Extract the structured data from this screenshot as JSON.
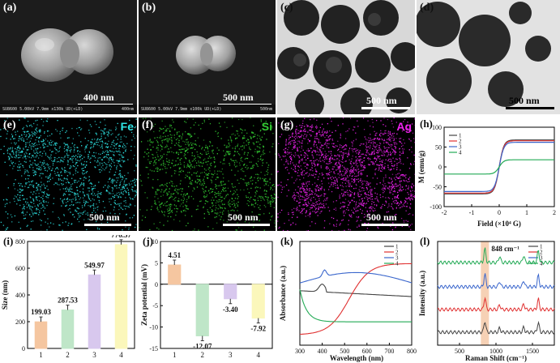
{
  "panels": {
    "a": {
      "label": "(a)",
      "scale": "400 nm",
      "info_left": "SU8600 5.00kV 7.9mm x130k UD(+LD)",
      "info_right": "400nm"
    },
    "b": {
      "label": "(b)",
      "scale": "500 nm",
      "info_left": "SU8600 5.00kV 7.9mm x100k UD(+LD)",
      "info_right": "500nm"
    },
    "c": {
      "label": "(c)",
      "scale": "500 nm"
    },
    "d": {
      "label": "(d)",
      "scale": "500 nm"
    },
    "e": {
      "label": "(e)",
      "element": "Fe",
      "scale": "500 nm"
    },
    "f": {
      "label": "(f)",
      "element": "Si",
      "scale": "500 nm"
    },
    "g": {
      "label": "(g)",
      "element": "Ag",
      "scale": "500 nm"
    }
  },
  "colors": {
    "fe": "#2ee6e6",
    "si": "#33cc33",
    "ag": "#ee22ee"
  },
  "chart_data": [
    {
      "id": "h",
      "label": "(h)",
      "type": "line",
      "xlabel": "Field (×10⁴ G)",
      "ylabel": "M (emu/g)",
      "xlim": [
        -2,
        2
      ],
      "ylim": [
        -100,
        100
      ],
      "xticks": [
        "-2",
        "-1",
        "0",
        "1",
        "2"
      ],
      "yticks": [
        "-100",
        "-50",
        "0",
        "50",
        "100"
      ],
      "series": [
        {
          "name": "1",
          "color": "#444444",
          "ms": 68
        },
        {
          "name": "2",
          "color": "#e03030",
          "ms": 66
        },
        {
          "name": "3",
          "color": "#3a66cc",
          "ms": 62
        },
        {
          "name": "4",
          "color": "#22aa55",
          "ms": 18
        }
      ]
    },
    {
      "id": "i",
      "label": "(i)",
      "type": "bar",
      "ylabel": "Size (nm)",
      "ylim": [
        0,
        800
      ],
      "yticks": [
        "0",
        "200",
        "400",
        "600",
        "800"
      ],
      "categories": [
        "1",
        "2",
        "3",
        "4"
      ],
      "values": [
        199.03,
        287.53,
        549.97,
        776.57
      ],
      "value_labels": [
        "199.03",
        "287.53",
        "549.97",
        "776.57"
      ],
      "colors": [
        "#f5c6a0",
        "#bfe6c8",
        "#d8c8ee",
        "#fbf7bb"
      ]
    },
    {
      "id": "j",
      "label": "(j)",
      "type": "bar",
      "ylabel": "Zeta potential (mV)",
      "ylim": [
        -15,
        10
      ],
      "yticks": [
        "-15",
        "-10",
        "-5",
        "0",
        "5",
        "10"
      ],
      "categories": [
        "1",
        "2",
        "3",
        "4"
      ],
      "values": [
        4.51,
        -12.07,
        -3.4,
        -7.92
      ],
      "value_labels": [
        "4.51",
        "-12.07",
        "-3.40",
        "-7.92"
      ],
      "colors": [
        "#f5c6a0",
        "#bfe6c8",
        "#d8c8ee",
        "#fbf7bb"
      ]
    },
    {
      "id": "k",
      "label": "(k)",
      "type": "line",
      "xlabel": "Wavelength (nm)",
      "ylabel": "Absorbance (a.u.)",
      "xlim": [
        300,
        800
      ],
      "xticks": [
        "300",
        "400",
        "500",
        "600",
        "700",
        "800"
      ],
      "series": [
        {
          "name": "1",
          "color": "#444444"
        },
        {
          "name": "2",
          "color": "#e03030"
        },
        {
          "name": "3",
          "color": "#3a66cc"
        },
        {
          "name": "4",
          "color": "#22aa55"
        }
      ]
    },
    {
      "id": "l",
      "label": "(l)",
      "type": "line",
      "xlabel": "Raman Shift (cm⁻¹)",
      "ylabel": "Intensity (a.u.)",
      "xlim": [
        200,
        1800
      ],
      "xticks": [
        "500",
        "1000",
        "1500"
      ],
      "annotation": "848 cm⁻¹",
      "annotation_x": 848,
      "series": [
        {
          "name": "1",
          "color": "#444444"
        },
        {
          "name": "2",
          "color": "#e03030"
        },
        {
          "name": "3",
          "color": "#3a66cc"
        },
        {
          "name": "4",
          "color": "#22aa55"
        }
      ]
    }
  ]
}
